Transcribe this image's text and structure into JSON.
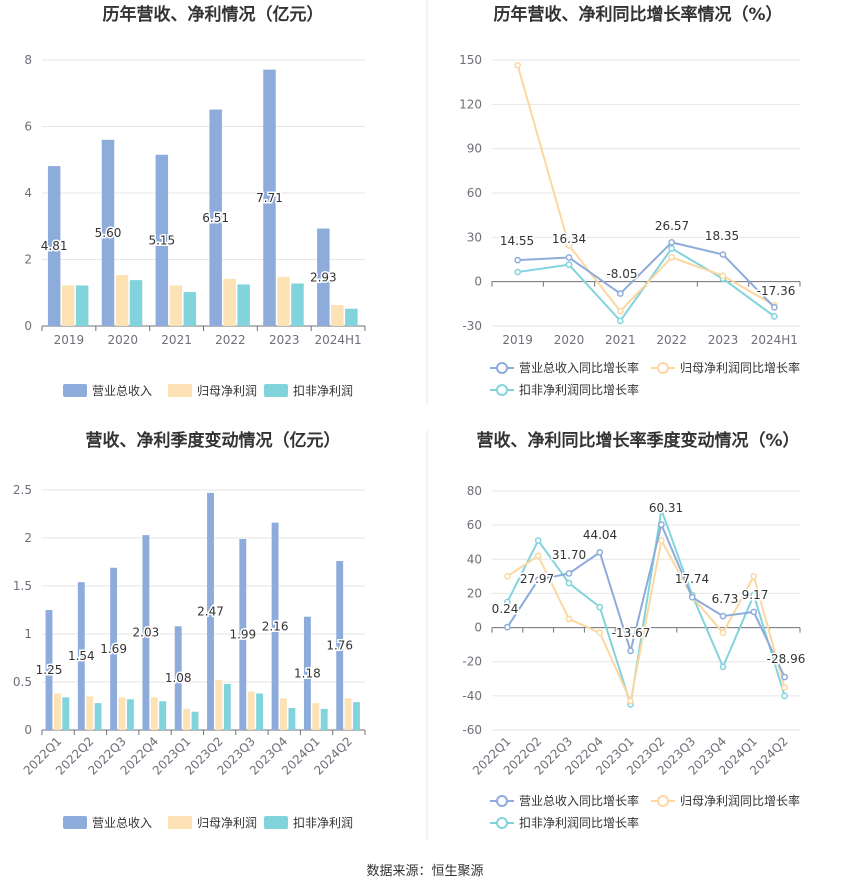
{
  "source_label": "数据来源：恒生聚源",
  "colors": {
    "revenue": "#8eacdb",
    "net_profit": "#fde2b5",
    "deducted_profit": "#81d4dc",
    "revenue_line": "#8eacdb",
    "net_profit_line": "#fcd79f",
    "deducted_line": "#81d4dc"
  },
  "chart_data": [
    {
      "id": "annual-bar",
      "type": "bar",
      "title": "历年营收、净利情况（亿元）",
      "categories": [
        "2019",
        "2020",
        "2021",
        "2022",
        "2023",
        "2024H1"
      ],
      "ylim": [
        0,
        8
      ],
      "yticks": [
        "0",
        "2",
        "4",
        "6",
        "8"
      ],
      "series": [
        {
          "name": "营业总收入",
          "values": [
            4.81,
            5.6,
            5.15,
            6.51,
            7.71,
            2.93
          ],
          "labels": [
            "4.81",
            "5.60",
            "5.15",
            "6.51",
            "7.71",
            "2.93"
          ]
        },
        {
          "name": "归母净利润",
          "values": [
            1.22,
            1.53,
            1.22,
            1.42,
            1.48,
            0.63
          ]
        },
        {
          "name": "扣非净利润",
          "values": [
            1.22,
            1.38,
            1.02,
            1.25,
            1.28,
            0.52
          ]
        }
      ],
      "grid": true,
      "legend": "bottom"
    },
    {
      "id": "annual-line",
      "type": "line",
      "title": "历年营收、净利同比增长率情况（%）",
      "categories": [
        "2019",
        "2020",
        "2021",
        "2022",
        "2023",
        "2024H1"
      ],
      "ylim": [
        -30,
        150
      ],
      "yticks": [
        "-30",
        "0",
        "30",
        "60",
        "90",
        "120",
        "150"
      ],
      "series": [
        {
          "name": "营业总收入同比增长率",
          "values": [
            14.55,
            16.34,
            -8.05,
            26.57,
            18.35,
            -17.36
          ],
          "labels": [
            "14.55",
            "16.34",
            "-8.05",
            "26.57",
            "18.35",
            "-17.36"
          ]
        },
        {
          "name": "归母净利润同比增长率",
          "values": [
            146.5,
            24.5,
            -20.0,
            16.5,
            4.0,
            -16.0
          ]
        },
        {
          "name": "扣非净利润同比增长率",
          "values": [
            6.5,
            11.5,
            -26.5,
            22.5,
            2.0,
            -23.5
          ]
        }
      ],
      "grid": true,
      "legend": "bottom"
    },
    {
      "id": "quarter-bar",
      "type": "bar",
      "title": "营收、净利季度变动情况（亿元）",
      "categories": [
        "2022Q1",
        "2022Q2",
        "2022Q3",
        "2022Q4",
        "2023Q1",
        "2023Q2",
        "2023Q3",
        "2023Q4",
        "2024Q1",
        "2024Q2"
      ],
      "ylim": [
        0,
        2.5
      ],
      "yticks": [
        "0",
        "0.5",
        "1",
        "1.5",
        "2",
        "2.5"
      ],
      "series": [
        {
          "name": "营业总收入",
          "values": [
            1.25,
            1.54,
            1.69,
            2.03,
            1.08,
            2.47,
            1.99,
            2.16,
            1.18,
            1.76
          ],
          "labels": [
            "1.25",
            "1.54",
            "1.69",
            "2.03",
            "1.08",
            "2.47",
            "1.99",
            "2.16",
            "1.18",
            "1.76"
          ]
        },
        {
          "name": "归母净利润",
          "values": [
            0.38,
            0.35,
            0.34,
            0.34,
            0.22,
            0.52,
            0.4,
            0.33,
            0.28,
            0.33
          ]
        },
        {
          "name": "扣非净利润",
          "values": [
            0.34,
            0.28,
            0.32,
            0.3,
            0.19,
            0.48,
            0.38,
            0.23,
            0.22,
            0.29
          ]
        }
      ],
      "grid": true,
      "legend": "bottom"
    },
    {
      "id": "quarter-line",
      "type": "line",
      "title": "营收、净利同比增长率季度变动情况（%）",
      "categories": [
        "2022Q1",
        "2022Q2",
        "2022Q3",
        "2022Q4",
        "2023Q1",
        "2023Q2",
        "2023Q3",
        "2023Q4",
        "2024Q1",
        "2024Q2"
      ],
      "ylim": [
        -60,
        80
      ],
      "yticks": [
        "-60",
        "-40",
        "-20",
        "0",
        "20",
        "40",
        "60",
        "80"
      ],
      "series": [
        {
          "name": "营业总收入同比增长率",
          "values": [
            0.24,
            27.97,
            31.7,
            44.04,
            -13.67,
            60.31,
            17.74,
            6.73,
            9.17,
            -28.96
          ],
          "labels": [
            "0.24",
            "27.97",
            "31.70",
            "44.04",
            "-13.67",
            "60.31",
            "17.74",
            "6.73",
            "9.17",
            "-28.96"
          ]
        },
        {
          "name": "归母净利润同比增长率",
          "values": [
            30.0,
            42.0,
            5.0,
            -3.0,
            -43.0,
            51.0,
            18.0,
            -3.0,
            30.0,
            -35.0
          ]
        },
        {
          "name": "扣非净利润同比增长率",
          "values": [
            15.0,
            51.0,
            26.0,
            12.0,
            -45.0,
            69.0,
            19.0,
            -23.0,
            19.0,
            -40.0
          ]
        }
      ],
      "grid": true,
      "legend": "bottom"
    }
  ]
}
